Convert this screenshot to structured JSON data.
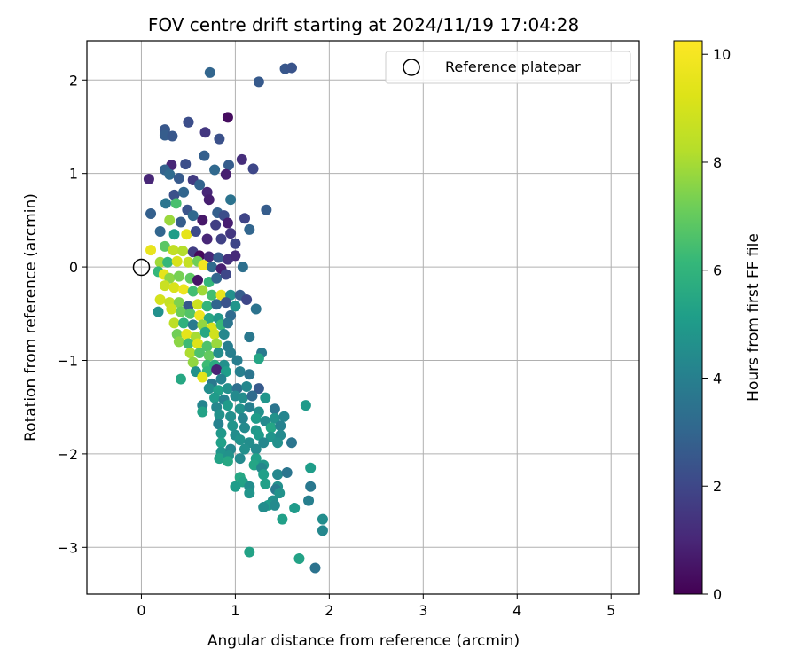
{
  "chart_data": {
    "type": "scatter",
    "title": "FOV centre drift starting at 2024/11/19 17:04:28",
    "xlabel": "Angular distance from reference (arcmin)",
    "ylabel": "Rotation from reference (arcmin)",
    "xlim": [
      -0.58,
      5.3
    ],
    "ylim": [
      -3.5,
      2.42
    ],
    "x_ticks": [
      0,
      1,
      2,
      3,
      4,
      5
    ],
    "y_ticks": [
      -3,
      -2,
      -1,
      0,
      1,
      2
    ],
    "x_tick_labels": [
      "0",
      "1",
      "2",
      "3",
      "4",
      "5"
    ],
    "y_tick_labels": [
      "−3",
      "−2",
      "−1",
      "0",
      "1",
      "2"
    ],
    "grid": true,
    "legend": {
      "placement": "top-right",
      "entries": [
        "Reference platepar"
      ]
    },
    "reference_point": {
      "x": 0,
      "y": 0,
      "label": "Reference platepar"
    },
    "colorbar": {
      "label": "Hours from first FF file",
      "range": [
        0,
        10.25
      ],
      "ticks": [
        0,
        2,
        4,
        6,
        8,
        10
      ],
      "tick_labels": [
        "0",
        "2",
        "4",
        "6",
        "8",
        "10"
      ],
      "colormap": "viridis"
    },
    "points": [
      [
        0.73,
        2.08,
        3.0
      ],
      [
        1.53,
        2.12,
        2.5
      ],
      [
        1.6,
        2.13,
        2.4
      ],
      [
        1.25,
        1.98,
        2.6
      ],
      [
        0.92,
        1.6,
        0.3
      ],
      [
        0.5,
        1.55,
        2.0
      ],
      [
        0.5,
        1.55,
        2.2
      ],
      [
        0.25,
        1.47,
        2.5
      ],
      [
        0.25,
        1.41,
        2.7
      ],
      [
        0.33,
        1.4,
        2.5
      ],
      [
        0.68,
        1.44,
        1.5
      ],
      [
        0.83,
        1.37,
        2.3
      ],
      [
        0.67,
        1.19,
        2.8
      ],
      [
        1.07,
        1.15,
        1.2
      ],
      [
        0.93,
        1.09,
        2.7
      ],
      [
        1.19,
        1.05,
        2.0
      ],
      [
        0.08,
        0.94,
        1.0
      ],
      [
        0.32,
        1.09,
        1.0
      ],
      [
        0.47,
        1.1,
        2.2
      ],
      [
        0.78,
        1.04,
        3.1
      ],
      [
        0.9,
        0.99,
        0.8
      ],
      [
        0.25,
        1.04,
        2.9
      ],
      [
        0.3,
        0.99,
        3.2
      ],
      [
        0.4,
        0.95,
        2.6
      ],
      [
        0.55,
        0.93,
        1.6
      ],
      [
        0.62,
        0.88,
        2.9
      ],
      [
        0.7,
        0.8,
        1.0
      ],
      [
        0.35,
        0.77,
        2.3
      ],
      [
        0.45,
        0.8,
        3.0
      ],
      [
        0.72,
        0.72,
        0.8
      ],
      [
        0.95,
        0.72,
        3.5
      ],
      [
        1.33,
        0.61,
        2.7
      ],
      [
        0.1,
        0.57,
        2.8
      ],
      [
        0.26,
        0.68,
        3.6
      ],
      [
        0.37,
        0.68,
        6.5
      ],
      [
        0.49,
        0.61,
        2.4
      ],
      [
        0.55,
        0.55,
        3.1
      ],
      [
        0.65,
        0.5,
        0.6
      ],
      [
        0.81,
        0.58,
        2.8
      ],
      [
        0.88,
        0.55,
        2.2
      ],
      [
        1.1,
        0.52,
        1.9
      ],
      [
        1.15,
        0.4,
        3.0
      ],
      [
        0.92,
        0.47,
        0.8
      ],
      [
        0.79,
        0.45,
        1.7
      ],
      [
        0.3,
        0.5,
        7.8
      ],
      [
        0.42,
        0.48,
        2.7
      ],
      [
        0.2,
        0.38,
        3.0
      ],
      [
        0.35,
        0.35,
        5.1
      ],
      [
        0.48,
        0.35,
        9.5
      ],
      [
        0.58,
        0.38,
        2.1
      ],
      [
        0.7,
        0.3,
        1.0
      ],
      [
        0.85,
        0.3,
        1.8
      ],
      [
        0.95,
        0.36,
        1.5
      ],
      [
        1.0,
        0.25,
        2.0
      ],
      [
        0.1,
        0.18,
        9.6
      ],
      [
        0.25,
        0.22,
        6.8
      ],
      [
        0.34,
        0.18,
        8.5
      ],
      [
        0.44,
        0.17,
        8.2
      ],
      [
        0.55,
        0.16,
        1.7
      ],
      [
        0.62,
        0.12,
        0.2
      ],
      [
        0.72,
        0.11,
        1.1
      ],
      [
        0.82,
        0.1,
        2.7
      ],
      [
        0.92,
        0.08,
        1.3
      ],
      [
        1.0,
        0.12,
        1.1
      ],
      [
        0.2,
        0.05,
        7.9
      ],
      [
        0.28,
        0.05,
        6.1
      ],
      [
        0.38,
        0.06,
        9.1
      ],
      [
        0.5,
        0.05,
        8.6
      ],
      [
        0.6,
        0.06,
        7.2
      ],
      [
        0.66,
        0.02,
        9.9
      ],
      [
        0.75,
        0.0,
        3.2
      ],
      [
        0.85,
        -0.02,
        0.8
      ],
      [
        1.08,
        0.0,
        3.4
      ],
      [
        0.18,
        -0.05,
        6.1
      ],
      [
        0.24,
        -0.08,
        9.5
      ],
      [
        0.3,
        -0.12,
        7.6
      ],
      [
        0.4,
        -0.1,
        7.3
      ],
      [
        0.52,
        -0.12,
        6.9
      ],
      [
        0.6,
        -0.14,
        0.5
      ],
      [
        0.72,
        -0.16,
        6.1
      ],
      [
        0.8,
        -0.12,
        3.0
      ],
      [
        0.9,
        -0.08,
        2.0
      ],
      [
        0.25,
        -0.2,
        8.7
      ],
      [
        0.35,
        -0.22,
        9.1
      ],
      [
        0.45,
        -0.24,
        9.7
      ],
      [
        0.55,
        -0.26,
        6.4
      ],
      [
        0.65,
        -0.25,
        7.9
      ],
      [
        0.75,
        -0.3,
        6.4
      ],
      [
        0.85,
        -0.3,
        9.6
      ],
      [
        0.95,
        -0.3,
        4.6
      ],
      [
        1.05,
        -0.3,
        2.7
      ],
      [
        1.12,
        -0.35,
        2.0
      ],
      [
        0.2,
        -0.35,
        9.0
      ],
      [
        0.3,
        -0.38,
        8.6
      ],
      [
        0.4,
        -0.38,
        7.4
      ],
      [
        0.5,
        -0.42,
        2.5
      ],
      [
        0.6,
        -0.4,
        8.8
      ],
      [
        0.7,
        -0.42,
        6.0
      ],
      [
        0.8,
        -0.4,
        3.0
      ],
      [
        0.9,
        -0.38,
        2.4
      ],
      [
        1.0,
        -0.42,
        4.8
      ],
      [
        0.18,
        -0.48,
        4.6
      ],
      [
        0.32,
        -0.45,
        8.9
      ],
      [
        0.42,
        -0.48,
        7.1
      ],
      [
        0.52,
        -0.5,
        6.7
      ],
      [
        0.62,
        -0.52,
        9.8
      ],
      [
        0.72,
        -0.55,
        5.5
      ],
      [
        0.82,
        -0.55,
        4.9
      ],
      [
        0.95,
        -0.52,
        3.2
      ],
      [
        1.22,
        -0.45,
        3.5
      ],
      [
        0.35,
        -0.6,
        8.4
      ],
      [
        0.45,
        -0.6,
        5.9
      ],
      [
        0.55,
        -0.62,
        3.8
      ],
      [
        0.65,
        -0.62,
        7.7
      ],
      [
        0.75,
        -0.65,
        9.1
      ],
      [
        0.85,
        -0.62,
        6.2
      ],
      [
        0.92,
        -0.6,
        3.6
      ],
      [
        0.38,
        -0.72,
        7.2
      ],
      [
        0.48,
        -0.72,
        9.5
      ],
      [
        0.58,
        -0.75,
        8.0
      ],
      [
        0.68,
        -0.7,
        5.5
      ],
      [
        0.78,
        -0.72,
        8.9
      ],
      [
        0.88,
        -0.72,
        4.3
      ],
      [
        0.4,
        -0.8,
        7.6
      ],
      [
        0.5,
        -0.82,
        6.3
      ],
      [
        0.6,
        -0.82,
        9.3
      ],
      [
        0.7,
        -0.85,
        6.6
      ],
      [
        0.8,
        -0.82,
        7.8
      ],
      [
        0.92,
        -0.85,
        3.9
      ],
      [
        1.15,
        -0.75,
        3.7
      ],
      [
        0.52,
        -0.92,
        8.1
      ],
      [
        0.62,
        -0.92,
        6.6
      ],
      [
        0.72,
        -0.95,
        7.0
      ],
      [
        0.82,
        -0.92,
        4.5
      ],
      [
        0.95,
        -0.92,
        4.0
      ],
      [
        1.28,
        -0.92,
        3.8
      ],
      [
        0.55,
        -1.02,
        7.7
      ],
      [
        0.7,
        -1.05,
        6.3
      ],
      [
        0.78,
        -1.05,
        5.7
      ],
      [
        0.88,
        -1.05,
        4.6
      ],
      [
        1.02,
        -1.0,
        3.9
      ],
      [
        1.25,
        -0.98,
        5.4
      ],
      [
        0.58,
        -1.12,
        4.7
      ],
      [
        0.7,
        -1.12,
        6.0
      ],
      [
        0.8,
        -1.1,
        0.9
      ],
      [
        0.9,
        -1.12,
        5.1
      ],
      [
        1.05,
        -1.12,
        4.0
      ],
      [
        1.15,
        -1.15,
        3.6
      ],
      [
        0.42,
        -1.2,
        5.5
      ],
      [
        0.65,
        -1.18,
        9.4
      ],
      [
        0.75,
        -1.25,
        3.7
      ],
      [
        0.85,
        -1.2,
        4.1
      ],
      [
        0.72,
        -1.3,
        4.5
      ],
      [
        0.82,
        -1.32,
        5.2
      ],
      [
        0.92,
        -1.3,
        4.6
      ],
      [
        1.02,
        -1.3,
        3.4
      ],
      [
        1.12,
        -1.28,
        4.3
      ],
      [
        1.25,
        -1.3,
        2.6
      ],
      [
        0.78,
        -1.4,
        5.0
      ],
      [
        0.88,
        -1.42,
        4.1
      ],
      [
        1.0,
        -1.38,
        4.4
      ],
      [
        1.08,
        -1.4,
        4.5
      ],
      [
        1.18,
        -1.38,
        3.2
      ],
      [
        1.32,
        -1.4,
        4.8
      ],
      [
        0.65,
        -1.48,
        4.2
      ],
      [
        0.8,
        -1.5,
        4.3
      ],
      [
        0.92,
        -1.48,
        5.0
      ],
      [
        1.05,
        -1.52,
        4.7
      ],
      [
        1.15,
        -1.5,
        4.0
      ],
      [
        1.25,
        -1.55,
        4.6
      ],
      [
        1.42,
        -1.52,
        3.6
      ],
      [
        1.75,
        -1.48,
        5.0
      ],
      [
        0.65,
        -1.55,
        5.3
      ],
      [
        0.83,
        -1.58,
        4.7
      ],
      [
        0.95,
        -1.6,
        4.6
      ],
      [
        1.08,
        -1.62,
        4.2
      ],
      [
        1.22,
        -1.62,
        5.1
      ],
      [
        1.32,
        -1.65,
        4.4
      ],
      [
        1.42,
        -1.62,
        4.7
      ],
      [
        1.52,
        -1.6,
        4.2
      ],
      [
        0.82,
        -1.68,
        4.1
      ],
      [
        0.97,
        -1.7,
        4.8
      ],
      [
        1.1,
        -1.72,
        4.4
      ],
      [
        1.22,
        -1.75,
        4.9
      ],
      [
        1.38,
        -1.72,
        5.4
      ],
      [
        1.48,
        -1.7,
        4.1
      ],
      [
        0.85,
        -1.78,
        4.9
      ],
      [
        1.0,
        -1.8,
        4.5
      ],
      [
        1.25,
        -1.8,
        5.0
      ],
      [
        1.38,
        -1.82,
        4.8
      ],
      [
        1.48,
        -1.8,
        4.4
      ],
      [
        0.85,
        -1.88,
        5.2
      ],
      [
        1.05,
        -1.85,
        4.7
      ],
      [
        1.15,
        -1.88,
        4.5
      ],
      [
        1.3,
        -1.88,
        4.3
      ],
      [
        1.45,
        -1.88,
        4.6
      ],
      [
        1.6,
        -1.88,
        3.6
      ],
      [
        0.85,
        -1.98,
        4.8
      ],
      [
        0.95,
        -1.95,
        4.3
      ],
      [
        1.1,
        -1.95,
        4.6
      ],
      [
        1.22,
        -1.95,
        4.4
      ],
      [
        0.83,
        -2.05,
        5.3
      ],
      [
        0.93,
        -2.02,
        4.7
      ],
      [
        1.05,
        -2.05,
        4.4
      ],
      [
        1.22,
        -2.05,
        5.2
      ],
      [
        0.92,
        -2.08,
        5.5
      ],
      [
        1.2,
        -2.12,
        5.4
      ],
      [
        1.3,
        -2.12,
        4.9
      ],
      [
        1.28,
        -2.15,
        4.3
      ],
      [
        1.8,
        -2.15,
        5.1
      ],
      [
        1.3,
        -2.22,
        5.2
      ],
      [
        1.45,
        -2.22,
        4.3
      ],
      [
        1.55,
        -2.2,
        3.6
      ],
      [
        1.05,
        -2.25,
        5.5
      ],
      [
        1.08,
        -2.3,
        5.3
      ],
      [
        1.0,
        -2.35,
        5.1
      ],
      [
        1.32,
        -2.32,
        5.2
      ],
      [
        1.15,
        -2.35,
        4.5
      ],
      [
        1.45,
        -2.35,
        4.6
      ],
      [
        1.8,
        -2.35,
        3.7
      ],
      [
        1.43,
        -2.38,
        3.8
      ],
      [
        1.15,
        -2.42,
        4.8
      ],
      [
        1.47,
        -2.42,
        4.7
      ],
      [
        1.78,
        -2.5,
        4.0
      ],
      [
        1.4,
        -2.5,
        4.6
      ],
      [
        1.35,
        -2.55,
        5.0
      ],
      [
        1.42,
        -2.55,
        4.4
      ],
      [
        1.3,
        -2.57,
        4.5
      ],
      [
        1.63,
        -2.58,
        5.0
      ],
      [
        1.5,
        -2.7,
        5.2
      ],
      [
        1.93,
        -2.7,
        4.5
      ],
      [
        1.93,
        -2.82,
        4.3
      ],
      [
        1.15,
        -3.05,
        5.3
      ],
      [
        1.68,
        -3.12,
        5.3
      ],
      [
        1.85,
        -3.22,
        3.5
      ]
    ]
  }
}
